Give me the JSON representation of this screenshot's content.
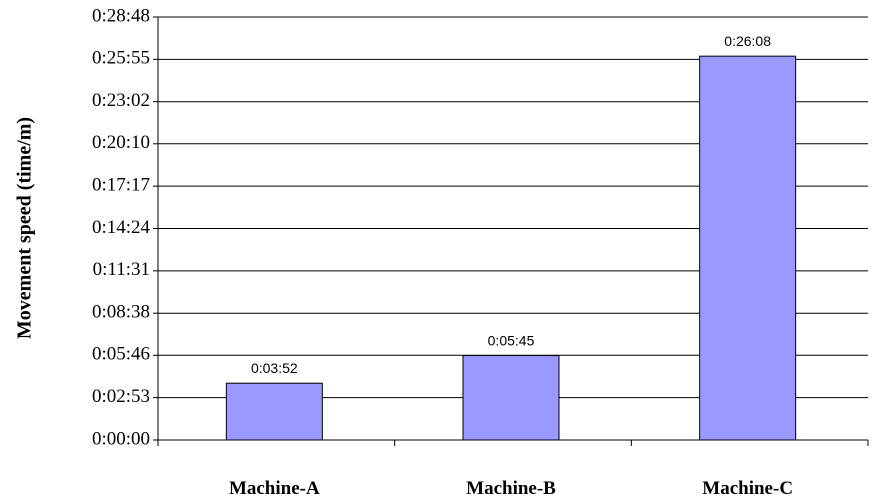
{
  "chart_data": {
    "type": "bar",
    "y_label": "Movement speed (time/m)",
    "categories": [
      "Machine-A",
      "Machine-B",
      "Machine-C"
    ],
    "values": [
      232,
      345,
      1568
    ],
    "value_labels": [
      "0:03:52",
      "0:05:45",
      "0:26:08"
    ],
    "color": "#9999ff",
    "ylim": [
      0,
      1728
    ],
    "yticks": [
      {
        "value": 0,
        "label": "0:00:00"
      },
      {
        "value": 173,
        "label": "0:02:53"
      },
      {
        "value": 346,
        "label": "0:05:46"
      },
      {
        "value": 518,
        "label": "0:08:38"
      },
      {
        "value": 691,
        "label": "0:11:31"
      },
      {
        "value": 864,
        "label": "0:14:24"
      },
      {
        "value": 1037,
        "label": "0:17:17"
      },
      {
        "value": 1210,
        "label": "0:20:10"
      },
      {
        "value": 1382,
        "label": "0:23:02"
      },
      {
        "value": 1555,
        "label": "0:25:55"
      },
      {
        "value": 1728,
        "label": "0:28:48"
      }
    ],
    "grid": true
  }
}
